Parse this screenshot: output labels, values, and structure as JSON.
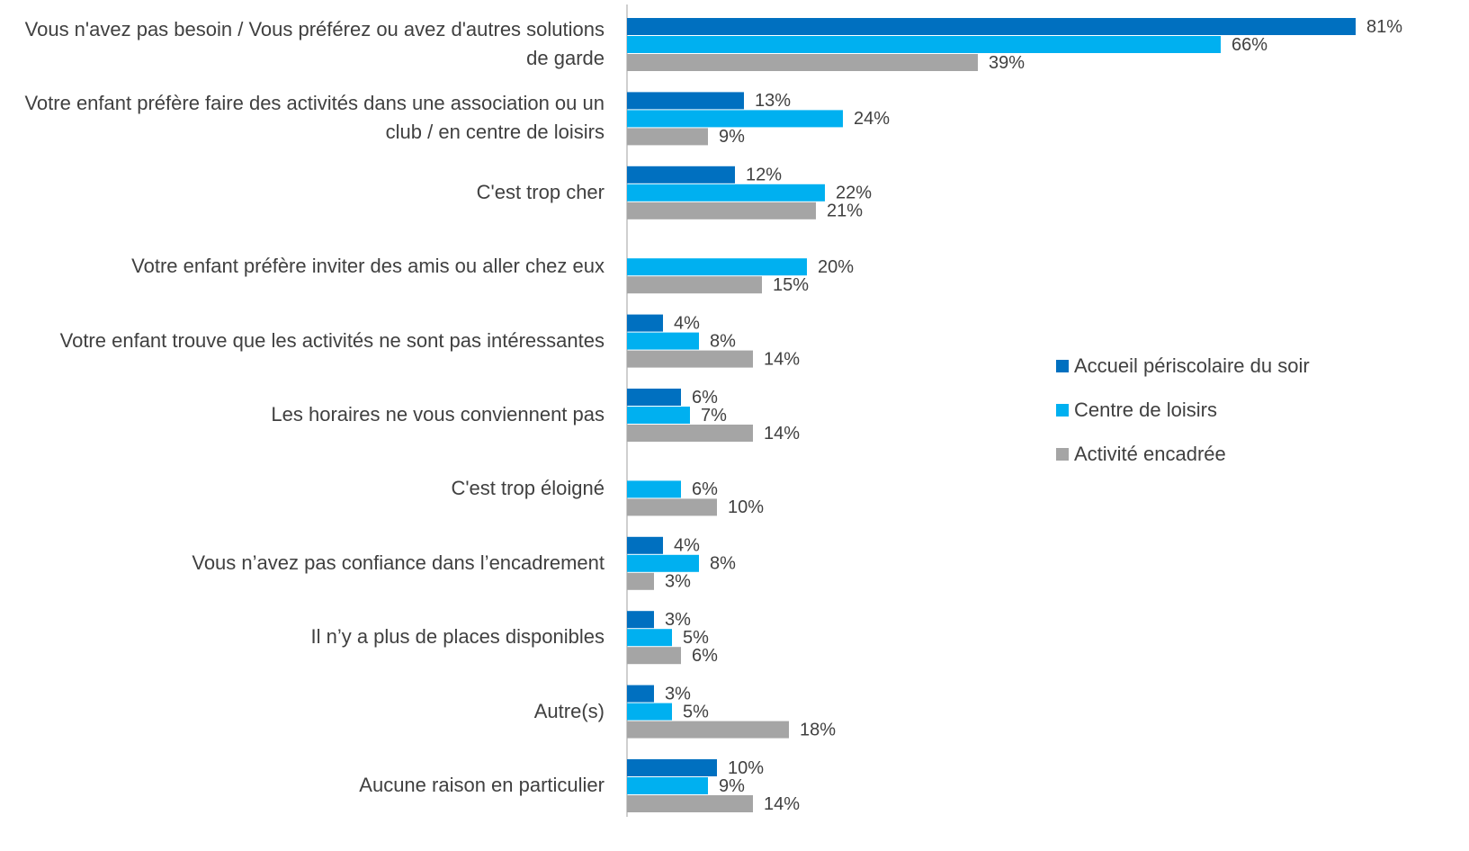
{
  "chart_data": {
    "type": "bar",
    "orientation": "horizontal",
    "categories": [
      "Vous n'avez pas besoin / Vous préférez ou avez d'autres solutions de garde",
      "Votre enfant préfère faire des activités dans une association ou un club / en centre de loisirs",
      "C'est trop cher",
      "Votre enfant préfère inviter des amis ou aller chez eux",
      "Votre enfant trouve que les activités ne sont pas intéressantes",
      "Les horaires ne vous conviennent pas",
      "C'est trop éloigné",
      "Vous n’avez pas confiance dans l’encadrement",
      "Il n’y a plus de places disponibles",
      "Autre(s)",
      "Aucune raison en particulier"
    ],
    "series": [
      {
        "name": "Accueil périscolaire du soir",
        "color": "#0070c0",
        "values": [
          81,
          13,
          12,
          null,
          4,
          6,
          null,
          4,
          3,
          3,
          10
        ],
        "value_labels": [
          "81%",
          "13%",
          "12%",
          null,
          "4%",
          "6%",
          null,
          "4%",
          "3%",
          "3%",
          "10%"
        ]
      },
      {
        "name": "Centre de loisirs",
        "color": "#00b0f0",
        "values": [
          66,
          24,
          22,
          20,
          8,
          7,
          6,
          8,
          5,
          5,
          9
        ],
        "value_labels": [
          "66%",
          "24%",
          "22%",
          "20%",
          "8%",
          "7%",
          "6%",
          "8%",
          "5%",
          "5%",
          "9%"
        ]
      },
      {
        "name": "Activité encadrée",
        "color": "#a5a5a5",
        "values": [
          39,
          9,
          21,
          15,
          14,
          14,
          10,
          3,
          6,
          18,
          14
        ],
        "value_labels": [
          "39%",
          "9%",
          "21%",
          "15%",
          "14%",
          "14%",
          "10%",
          "3%",
          "6%",
          "18%",
          "14%"
        ]
      }
    ],
    "xlim": [
      0,
      90
    ],
    "legend": "right"
  }
}
